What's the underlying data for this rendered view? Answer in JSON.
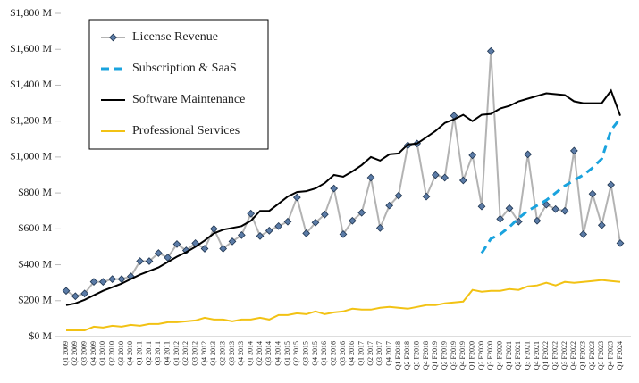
{
  "chart_data": {
    "type": "line",
    "categories": [
      "Q1 2009",
      "Q2 2009",
      "Q3 2009",
      "Q4 2009",
      "Q1 2010",
      "Q2 2010",
      "Q3 2010",
      "Q4 2010",
      "Q1 2011",
      "Q2 2011",
      "Q3 2011",
      "Q4 2011",
      "Q1 2012",
      "Q2 2012",
      "Q3 2012",
      "Q4 2012",
      "Q1 2013",
      "Q2 2013",
      "Q3 2013",
      "Q4 2013",
      "Q1 2014",
      "Q2 2014",
      "Q3 2014",
      "Q4 2014",
      "Q1 2015",
      "Q2 2015",
      "Q3 2015",
      "Q4 2015",
      "Q1 2016",
      "Q2 2016",
      "Q3 2016",
      "Q4 2016",
      "Q1 2017",
      "Q2 2017",
      "Q3 2017",
      "Q4 2017",
      "Q1 F2018",
      "Q2 F2018",
      "Q3 F2018",
      "Q4 F2018",
      "Q1 F2019",
      "Q2 F2019",
      "Q3 F2019",
      "Q4 F2019",
      "Q1 F2020",
      "Q2 F2020",
      "Q3 F2020",
      "Q4 F2020",
      "Q1 F2021",
      "Q2 F2021",
      "Q3 F2021",
      "Q4 F2021",
      "Q1 F2022",
      "Q2 F2022",
      "Q3 F2022",
      "Q4 F2022",
      "Q1 F2023",
      "Q2 F2023",
      "Q3 F2023",
      "Q4 F2023",
      "Q1 F2024"
    ],
    "series": [
      {
        "name": "License Revenue",
        "color": "#b3b3b3",
        "marker": "diamond",
        "values": [
          255,
          225,
          240,
          305,
          305,
          320,
          320,
          335,
          420,
          420,
          465,
          440,
          515,
          480,
          520,
          490,
          600,
          490,
          530,
          565,
          685,
          560,
          590,
          615,
          640,
          775,
          575,
          635,
          680,
          825,
          570,
          645,
          690,
          885,
          605,
          730,
          785,
          1065,
          1075,
          780,
          900,
          885,
          1230,
          870,
          1010,
          725,
          1590,
          655,
          715,
          640,
          1015,
          645,
          735,
          710,
          700,
          1035,
          570,
          795,
          620,
          845,
          520
        ]
      },
      {
        "name": "Subscription & SaaS",
        "color": "#1aa3de",
        "dashed": true,
        "values": [
          null,
          null,
          null,
          null,
          null,
          null,
          null,
          null,
          null,
          null,
          null,
          null,
          null,
          null,
          null,
          null,
          null,
          null,
          null,
          null,
          null,
          null,
          null,
          null,
          null,
          null,
          null,
          null,
          null,
          null,
          null,
          null,
          null,
          null,
          null,
          null,
          null,
          null,
          null,
          null,
          null,
          null,
          null,
          null,
          null,
          465,
          545,
          570,
          610,
          660,
          700,
          730,
          760,
          800,
          840,
          870,
          900,
          940,
          990,
          1150,
          1215
        ]
      },
      {
        "name": "Software Maintenance",
        "color": "#000000",
        "values": [
          175,
          185,
          205,
          230,
          255,
          275,
          295,
          320,
          345,
          365,
          385,
          415,
          445,
          470,
          500,
          535,
          575,
          595,
          605,
          615,
          645,
          700,
          700,
          740,
          780,
          805,
          810,
          825,
          855,
          900,
          890,
          920,
          955,
          1000,
          980,
          1015,
          1020,
          1070,
          1075,
          1110,
          1145,
          1190,
          1210,
          1235,
          1200,
          1235,
          1240,
          1270,
          1285,
          1310,
          1325,
          1340,
          1355,
          1350,
          1345,
          1310,
          1300,
          1300,
          1300,
          1370,
          1230
        ]
      },
      {
        "name": "Professional Services",
        "color": "#f2c214",
        "values": [
          35,
          35,
          35,
          55,
          50,
          60,
          55,
          65,
          60,
          70,
          70,
          80,
          80,
          85,
          90,
          105,
          95,
          95,
          85,
          95,
          95,
          105,
          95,
          120,
          120,
          130,
          125,
          140,
          125,
          135,
          140,
          155,
          150,
          150,
          160,
          165,
          160,
          155,
          165,
          175,
          175,
          185,
          190,
          195,
          260,
          250,
          255,
          255,
          265,
          260,
          280,
          285,
          300,
          285,
          305,
          300,
          305,
          310,
          315,
          310,
          305
        ]
      }
    ],
    "ylim": [
      0,
      1800
    ],
    "yticks": [
      {
        "value": 0,
        "label": "$0 M"
      },
      {
        "value": 200,
        "label": "$200 M"
      },
      {
        "value": 400,
        "label": "$400 M"
      },
      {
        "value": 600,
        "label": "$600 M"
      },
      {
        "value": 800,
        "label": "$800 M"
      },
      {
        "value": 1000,
        "label": "$1,000 M"
      },
      {
        "value": 1200,
        "label": "$1,200 M"
      },
      {
        "value": 1400,
        "label": "$1,400 M"
      },
      {
        "value": 1600,
        "label": "$1,600 M"
      },
      {
        "value": 1800,
        "label": "$1,800 M"
      }
    ],
    "grid": false,
    "legend": "upper left"
  }
}
